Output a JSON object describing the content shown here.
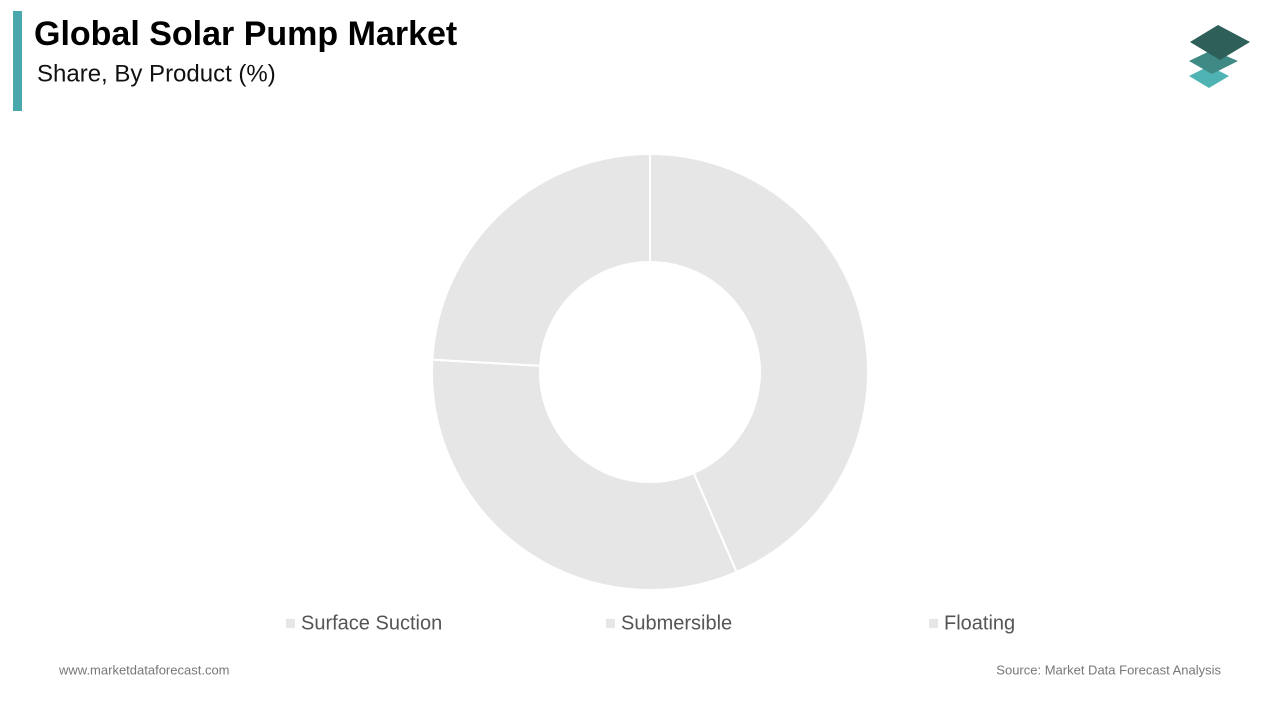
{
  "chart_data": {
    "type": "donut",
    "title": "Global Solar Pump Market",
    "subtitle": "Share, By Product (%)",
    "categories": [
      "Surface Suction",
      "Submersible",
      "Floating"
    ],
    "values": [
      43.5,
      32.4,
      24.1
    ],
    "colors": [
      "#e6e6e6",
      "#e6e6e6",
      "#e6e6e6"
    ]
  },
  "footer": {
    "website": "www.marketdataforecast.com",
    "source": "Source: Market Data Forecast Analysis"
  }
}
